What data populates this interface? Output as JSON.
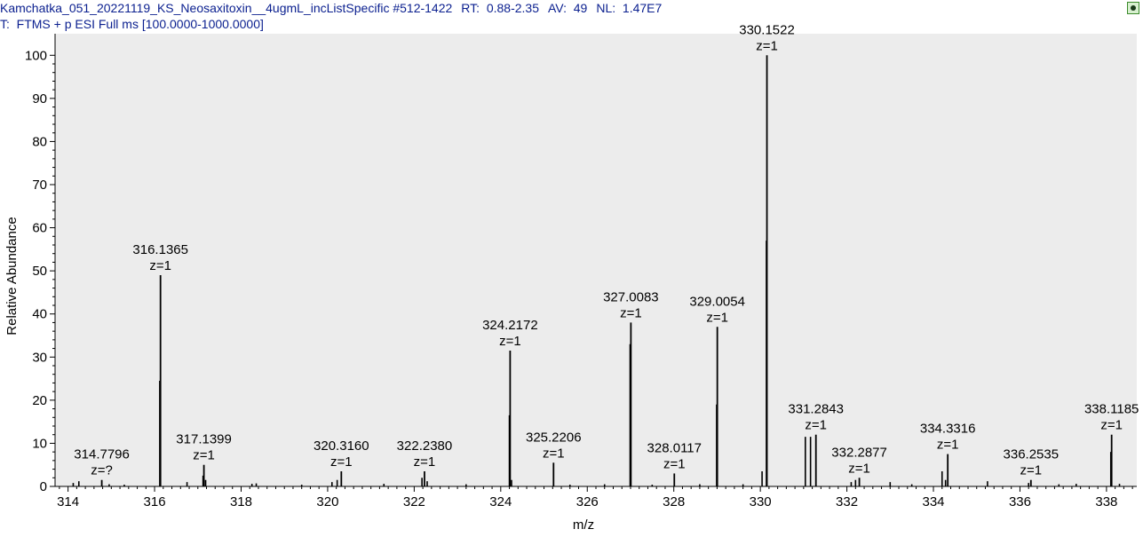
{
  "header": {
    "title_line": "Kamchatka_051_20221119_KS_Neosaxitoxin__4ugmL_incListSpecific #512-1422",
    "rt": "RT:  0.88-2.35",
    "av": "AV:  49",
    "nl": "NL:  1.47E7",
    "scan_filter": "T:  FTMS + p ESI Full ms [100.0000-1000.0000]"
  },
  "colors": {
    "header_text": "#0a1f8f",
    "plot_bg": "#ececec",
    "peak": "#000000"
  },
  "chart_data": {
    "type": "bar",
    "xlabel": "m/z",
    "ylabel": "Relative Abundance",
    "xlim": [
      313.7,
      338.7
    ],
    "ylim": [
      0,
      105
    ],
    "x_ticks": [
      314,
      316,
      318,
      320,
      322,
      324,
      326,
      328,
      330,
      332,
      334,
      336,
      338
    ],
    "y_ticks": [
      0,
      10,
      20,
      30,
      40,
      50,
      60,
      70,
      80,
      90,
      100
    ],
    "labeled_peaks": [
      {
        "mz": 314.7796,
        "intensity": 1.5,
        "label": "314.7796",
        "charge": "z=?"
      },
      {
        "mz": 316.1365,
        "intensity": 49,
        "label": "316.1365",
        "charge": "z=1"
      },
      {
        "mz": 317.1399,
        "intensity": 5,
        "label": "317.1399",
        "charge": "z=1"
      },
      {
        "mz": 320.316,
        "intensity": 3.5,
        "label": "320.3160",
        "charge": "z=1"
      },
      {
        "mz": 322.238,
        "intensity": 3.5,
        "label": "322.2380",
        "charge": "z=1"
      },
      {
        "mz": 324.2172,
        "intensity": 31.5,
        "label": "324.2172",
        "charge": "z=1"
      },
      {
        "mz": 325.2206,
        "intensity": 5.5,
        "label": "325.2206",
        "charge": "z=1"
      },
      {
        "mz": 327.0083,
        "intensity": 38,
        "label": "327.0083",
        "charge": "z=1"
      },
      {
        "mz": 328.0117,
        "intensity": 3,
        "label": "328.0117",
        "charge": "z=1"
      },
      {
        "mz": 329.0054,
        "intensity": 37,
        "label": "329.0054",
        "charge": "z=1"
      },
      {
        "mz": 330.1522,
        "intensity": 100,
        "label": "330.1522",
        "charge": "z=1"
      },
      {
        "mz": 331.2843,
        "intensity": 12,
        "label": "331.2843",
        "charge": "z=1"
      },
      {
        "mz": 332.2877,
        "intensity": 2,
        "label": "332.2877",
        "charge": "z=1"
      },
      {
        "mz": 334.3316,
        "intensity": 7.5,
        "label": "334.3316",
        "charge": "z=1"
      },
      {
        "mz": 336.2535,
        "intensity": 1.5,
        "label": "336.2535",
        "charge": "z=1"
      },
      {
        "mz": 338.1185,
        "intensity": 12,
        "label": "338.1185",
        "charge": "z=1"
      }
    ],
    "unlabeled_peaks": [
      {
        "mz": 314.12,
        "intensity": 0.8
      },
      {
        "mz": 314.25,
        "intensity": 1.2
      },
      {
        "mz": 314.95,
        "intensity": 0.5
      },
      {
        "mz": 315.3,
        "intensity": 0.4
      },
      {
        "mz": 316.12,
        "intensity": 24.5
      },
      {
        "mz": 316.75,
        "intensity": 1.0
      },
      {
        "mz": 317.12,
        "intensity": 2.5
      },
      {
        "mz": 317.18,
        "intensity": 1.5
      },
      {
        "mz": 318.25,
        "intensity": 0.6
      },
      {
        "mz": 318.35,
        "intensity": 0.7
      },
      {
        "mz": 319.4,
        "intensity": 0.4
      },
      {
        "mz": 320.1,
        "intensity": 1.0
      },
      {
        "mz": 320.22,
        "intensity": 1.5
      },
      {
        "mz": 321.3,
        "intensity": 0.6
      },
      {
        "mz": 322.18,
        "intensity": 2.0
      },
      {
        "mz": 322.3,
        "intensity": 1.2
      },
      {
        "mz": 323.2,
        "intensity": 0.5
      },
      {
        "mz": 324.2,
        "intensity": 16.5
      },
      {
        "mz": 324.25,
        "intensity": 1.5
      },
      {
        "mz": 325.6,
        "intensity": 0.4
      },
      {
        "mz": 326.4,
        "intensity": 0.5
      },
      {
        "mz": 326.99,
        "intensity": 33
      },
      {
        "mz": 327.5,
        "intensity": 0.4
      },
      {
        "mz": 328.6,
        "intensity": 0.5
      },
      {
        "mz": 328.99,
        "intensity": 19
      },
      {
        "mz": 329.6,
        "intensity": 0.5
      },
      {
        "mz": 330.04,
        "intensity": 3.5
      },
      {
        "mz": 330.14,
        "intensity": 57
      },
      {
        "mz": 331.04,
        "intensity": 11.5
      },
      {
        "mz": 331.16,
        "intensity": 11.5
      },
      {
        "mz": 332.1,
        "intensity": 1.0
      },
      {
        "mz": 332.2,
        "intensity": 1.5
      },
      {
        "mz": 333.0,
        "intensity": 1.0
      },
      {
        "mz": 333.5,
        "intensity": 0.5
      },
      {
        "mz": 334.2,
        "intensity": 3.5
      },
      {
        "mz": 334.28,
        "intensity": 1.5
      },
      {
        "mz": 335.25,
        "intensity": 1.2
      },
      {
        "mz": 336.2,
        "intensity": 0.8
      },
      {
        "mz": 336.9,
        "intensity": 0.5
      },
      {
        "mz": 337.3,
        "intensity": 0.6
      },
      {
        "mz": 338.1,
        "intensity": 8
      },
      {
        "mz": 338.3,
        "intensity": 0.6
      }
    ],
    "grid": false
  }
}
